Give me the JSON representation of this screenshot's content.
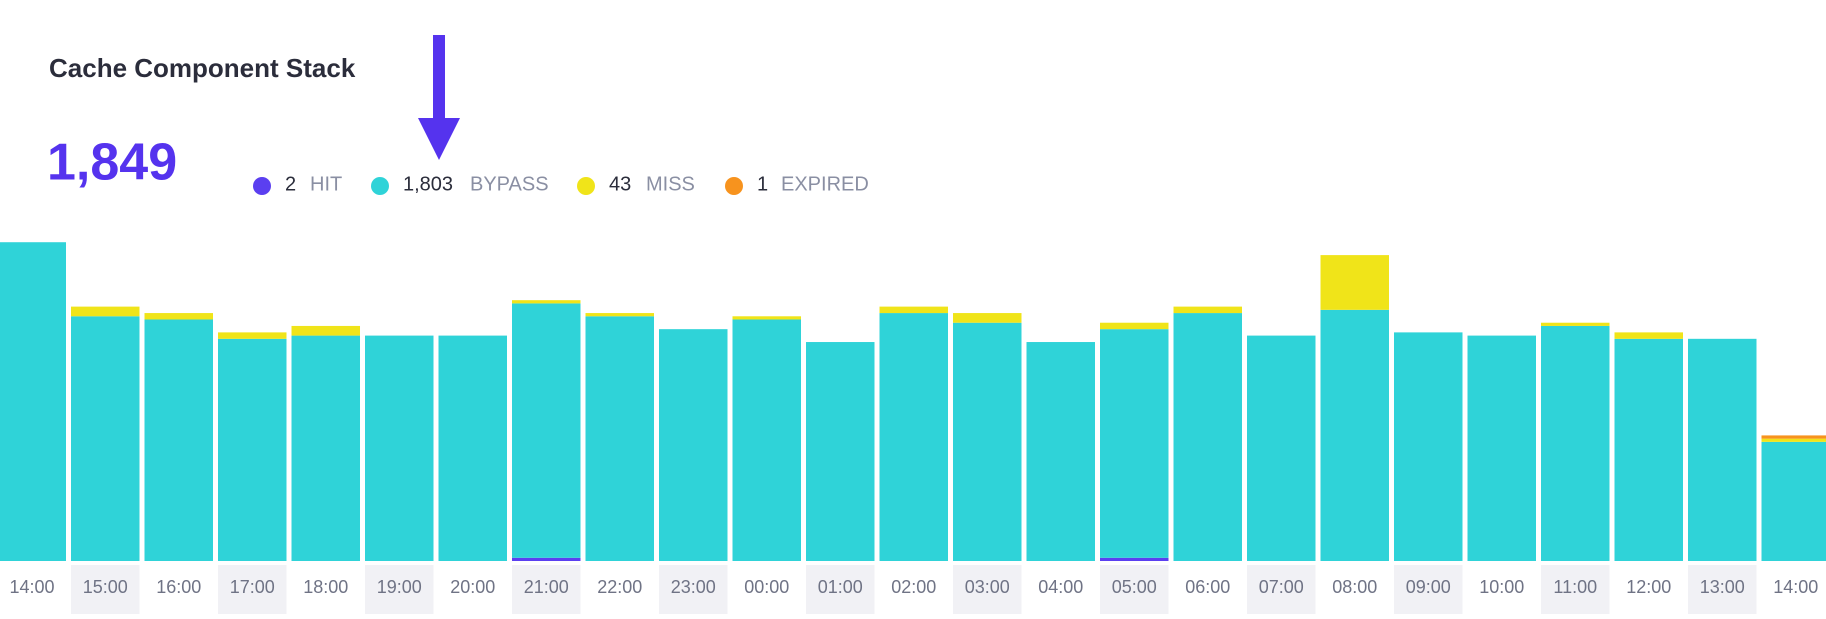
{
  "chart_data": {
    "type": "stacked-bar",
    "title": "Cache Component Stack",
    "total": {
      "value": 1849,
      "label": "1,849"
    },
    "categories": [
      "14:00",
      "15:00",
      "16:00",
      "17:00",
      "18:00",
      "19:00",
      "20:00",
      "21:00",
      "22:00",
      "23:00",
      "00:00",
      "01:00",
      "02:00",
      "03:00",
      "04:00",
      "05:00",
      "06:00",
      "07:00",
      "08:00",
      "09:00",
      "10:00",
      "11:00",
      "12:00",
      "13:00",
      "14:00"
    ],
    "series": [
      {
        "name": "HIT",
        "color": "#5b3ff0",
        "total": 2,
        "values": [
          0,
          0,
          0,
          0,
          0,
          0,
          0,
          1,
          0,
          0,
          0,
          0,
          0,
          0,
          0,
          1,
          0,
          0,
          0,
          0,
          0,
          0,
          0,
          0,
          0
        ]
      },
      {
        "name": "BYPASS",
        "color": "#2fd3d8",
        "total": {
          "value": 1803,
          "label": "1,803"
        },
        "values": [
          99,
          76,
          75,
          69,
          70,
          70,
          70,
          79,
          76,
          72,
          75,
          68,
          77,
          74,
          68,
          71,
          77,
          70,
          78,
          71,
          70,
          73,
          69,
          69,
          37
        ]
      },
      {
        "name": "MISS",
        "color": "#f0e419",
        "total": 43,
        "values": [
          0,
          3,
          2,
          2,
          3,
          0,
          0,
          1,
          1,
          0,
          1,
          0,
          2,
          3,
          0,
          2,
          2,
          0,
          17,
          0,
          0,
          1,
          2,
          0,
          1
        ]
      },
      {
        "name": "EXPIRED",
        "color": "#f7931e",
        "total": 1,
        "values": [
          0,
          0,
          0,
          0,
          0,
          0,
          0,
          0,
          0,
          0,
          0,
          0,
          0,
          0,
          0,
          0,
          0,
          0,
          0,
          0,
          0,
          0,
          0,
          0,
          1
        ]
      }
    ]
  }
}
